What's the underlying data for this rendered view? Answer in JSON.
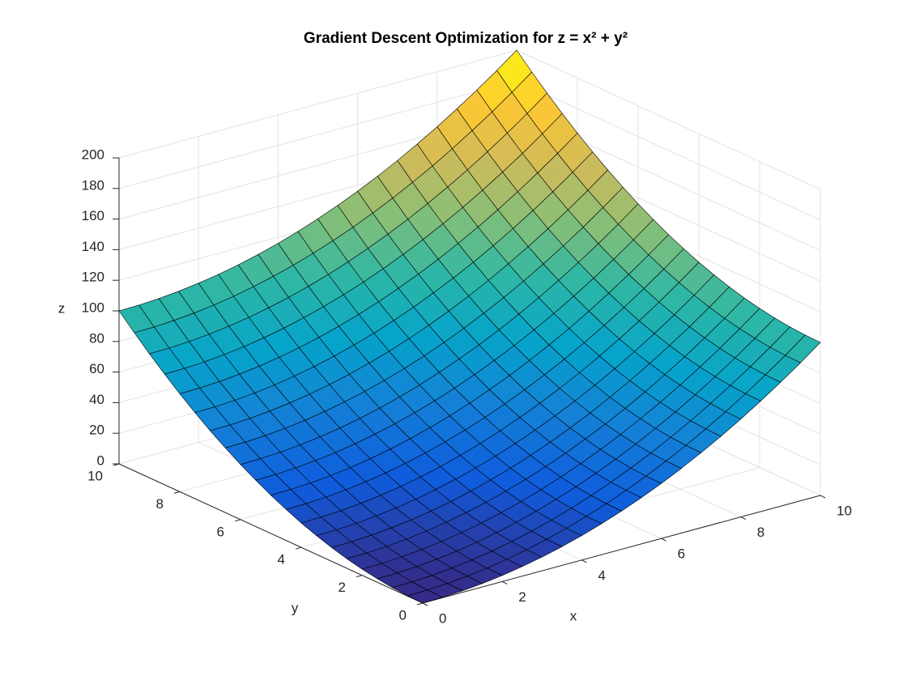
{
  "chart_data": {
    "type": "surface",
    "title": "Gradient Descent Optimization for z = x² + y²",
    "xlabel": "x",
    "ylabel": "y",
    "zlabel": "z",
    "x": [
      0,
      0.5,
      1,
      1.5,
      2,
      2.5,
      3,
      3.5,
      4,
      4.5,
      5,
      5.5,
      6,
      6.5,
      7,
      7.5,
      8,
      8.5,
      9,
      9.5,
      10
    ],
    "y": [
      0,
      0.5,
      1,
      1.5,
      2,
      2.5,
      3,
      3.5,
      4,
      4.5,
      5,
      5.5,
      6,
      6.5,
      7,
      7.5,
      8,
      8.5,
      9,
      9.5,
      10
    ],
    "z": [
      [
        0,
        0.25,
        1,
        2.25,
        4,
        6.25,
        9,
        12.25,
        16,
        20.25,
        25,
        30.25,
        36,
        42.25,
        49,
        56.25,
        64,
        72.25,
        81,
        90.25,
        100
      ],
      [
        0.25,
        0.5,
        1.25,
        2.5,
        4.25,
        6.5,
        9.25,
        12.5,
        16.25,
        20.5,
        25.25,
        30.5,
        36.25,
        42.5,
        49.25,
        56.5,
        64.25,
        72.5,
        81.25,
        90.5,
        100.25
      ],
      [
        1,
        1.25,
        2,
        3.25,
        5,
        7.25,
        10,
        13.25,
        17,
        21.25,
        26,
        31.25,
        37,
        43.25,
        50,
        57.25,
        65,
        73.25,
        82,
        91.25,
        101
      ],
      [
        2.25,
        2.5,
        3.25,
        4.5,
        6.25,
        8.5,
        11.25,
        14.5,
        18.25,
        22.5,
        27.25,
        32.5,
        38.25,
        44.5,
        51.25,
        58.5,
        66.25,
        74.5,
        83.25,
        92.5,
        102.25
      ],
      [
        4,
        4.25,
        5,
        6.25,
        8,
        10.25,
        13,
        16.25,
        20,
        24.25,
        29,
        34.25,
        40,
        46.25,
        53,
        60.25,
        68,
        76.25,
        85,
        94.25,
        104
      ],
      [
        6.25,
        6.5,
        7.25,
        8.5,
        10.25,
        12.5,
        15.25,
        18.5,
        22.25,
        26.5,
        31.25,
        36.5,
        42.25,
        48.5,
        55.25,
        62.5,
        70.25,
        78.5,
        87.25,
        96.5,
        106.25
      ],
      [
        9,
        9.25,
        10,
        11.25,
        13,
        15.25,
        18,
        21.25,
        25,
        29.25,
        34,
        39.25,
        45,
        51.25,
        58,
        65.25,
        73,
        81.25,
        90,
        99.25,
        109
      ],
      [
        12.25,
        12.5,
        13.25,
        14.5,
        16.25,
        18.5,
        21.25,
        24.5,
        28.25,
        32.5,
        37.25,
        42.5,
        48.25,
        54.5,
        61.25,
        68.5,
        76.25,
        84.5,
        93.25,
        102.5,
        112.25
      ],
      [
        16,
        16.25,
        17,
        18.25,
        20,
        22.25,
        25,
        28.25,
        32,
        36.25,
        41,
        46.25,
        52,
        58.25,
        65,
        72.25,
        80,
        88.25,
        97,
        106.25,
        116
      ],
      [
        20.25,
        20.5,
        21.25,
        22.5,
        24.25,
        26.5,
        29.25,
        32.5,
        36.25,
        40.5,
        45.25,
        50.5,
        56.25,
        62.5,
        69.25,
        76.5,
        84.25,
        92.5,
        101.25,
        110.5,
        120.25
      ],
      [
        25,
        25.25,
        26,
        27.25,
        29,
        31.25,
        34,
        37.25,
        41,
        45.25,
        50,
        55.25,
        61,
        67.25,
        74,
        81.25,
        89,
        97.25,
        106,
        115.25,
        125
      ],
      [
        30.25,
        30.5,
        31.25,
        32.5,
        34.25,
        36.5,
        39.25,
        42.5,
        46.25,
        50.5,
        55.25,
        60.5,
        66.25,
        72.5,
        79.25,
        86.5,
        94.25,
        102.5,
        111.25,
        120.5,
        130.25
      ],
      [
        36,
        36.25,
        37,
        38.25,
        40,
        42.25,
        45,
        48.25,
        52,
        56.25,
        61,
        66.25,
        72,
        78.25,
        85,
        92.25,
        100,
        108.25,
        117,
        126.25,
        136
      ],
      [
        42.25,
        42.5,
        43.25,
        44.5,
        46.25,
        48.5,
        51.25,
        54.5,
        58.25,
        62.5,
        67.25,
        72.5,
        78.25,
        84.5,
        91.25,
        98.5,
        106.25,
        114.5,
        123.25,
        132.5,
        142.25
      ],
      [
        49,
        49.25,
        50,
        51.25,
        53,
        55.25,
        58,
        61.25,
        65,
        69.25,
        74,
        79.25,
        85,
        91.25,
        98,
        105.25,
        113,
        121.25,
        130,
        139.25,
        149
      ],
      [
        56.25,
        56.5,
        57.25,
        58.5,
        60.25,
        62.5,
        65.25,
        68.5,
        72.25,
        76.5,
        81.25,
        86.5,
        92.25,
        98.5,
        105.25,
        112.5,
        120.25,
        128.5,
        137.25,
        146.5,
        156.25
      ],
      [
        64,
        64.25,
        65,
        66.25,
        68,
        70.25,
        73,
        76.25,
        80,
        84.25,
        89,
        94.25,
        100,
        106.25,
        113,
        120.25,
        128,
        136.25,
        145,
        154.25,
        164
      ],
      [
        72.25,
        72.5,
        73.25,
        74.5,
        76.25,
        78.5,
        81.25,
        84.5,
        88.25,
        92.5,
        97.25,
        102.5,
        108.25,
        114.5,
        121.25,
        128.5,
        136.25,
        144.5,
        153.25,
        162.5,
        172.25
      ],
      [
        81,
        81.25,
        82,
        83.25,
        85,
        87.25,
        90,
        93.25,
        97,
        101.25,
        106,
        111.25,
        117,
        123.25,
        130,
        137.25,
        145,
        153.25,
        162,
        171.25,
        181
      ],
      [
        90.25,
        90.5,
        91.25,
        92.5,
        94.25,
        96.5,
        99.25,
        102.5,
        106.25,
        110.5,
        115.25,
        120.5,
        126.25,
        132.5,
        139.25,
        146.5,
        154.25,
        162.5,
        171.25,
        180.5,
        190.25
      ],
      [
        100,
        100.25,
        101,
        102.25,
        104,
        106.25,
        109,
        112.25,
        116,
        120.25,
        125,
        130.25,
        136,
        142.25,
        149,
        156.25,
        164,
        172.25,
        181,
        190.25,
        200
      ]
    ],
    "xlim": [
      0,
      10
    ],
    "ylim": [
      0,
      10
    ],
    "zlim": [
      0,
      200
    ],
    "xticks": [
      0,
      2,
      4,
      6,
      8,
      10
    ],
    "yticks": [
      0,
      2,
      4,
      6,
      8,
      10
    ],
    "zticks": [
      0,
      20,
      40,
      60,
      80,
      100,
      120,
      140,
      160,
      180,
      200
    ],
    "colormap": [
      "#352a87",
      "#0f5cdd",
      "#1481d6",
      "#06a4ca",
      "#2eb7a4",
      "#87bf77",
      "#d1bb59",
      "#fec832",
      "#f9fb0e"
    ],
    "edge_color": "#000000",
    "grid": true
  }
}
